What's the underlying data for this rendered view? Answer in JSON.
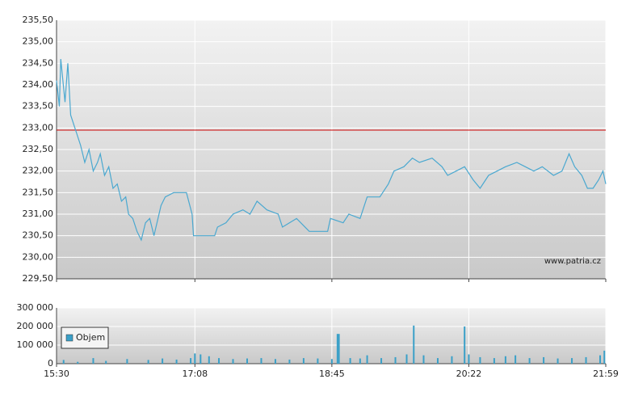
{
  "chart_data": [
    {
      "type": "line",
      "xlim": [
        "15:30",
        "21:59"
      ],
      "ylim": [
        229.5,
        235.5
      ],
      "yticks": [
        {
          "value": 229.5,
          "label": "229,50"
        },
        {
          "value": 230,
          "label": "230,00"
        },
        {
          "value": 230.5,
          "label": "230,50"
        },
        {
          "value": 231,
          "label": "231,00"
        },
        {
          "value": 231.5,
          "label": "231,50"
        },
        {
          "value": 232,
          "label": "232,00"
        },
        {
          "value": 232.5,
          "label": "232,50"
        },
        {
          "value": 233,
          "label": "233,00"
        },
        {
          "value": 233.5,
          "label": "233,50"
        },
        {
          "value": 234,
          "label": "234,00"
        },
        {
          "value": 234.5,
          "label": "234,50"
        },
        {
          "value": 235,
          "label": "235,00"
        },
        {
          "value": 235.5,
          "label": "235,50"
        }
      ],
      "grid": true,
      "reference_line": {
        "value": 232.95,
        "color": "#cc0000"
      },
      "annotation": "www.patria.cz",
      "x": [
        "15:30",
        "15:32",
        "15:33",
        "15:36",
        "15:38",
        "15:40",
        "15:43",
        "15:45",
        "15:47",
        "15:50",
        "15:53",
        "15:56",
        "15:59",
        "16:01",
        "16:04",
        "16:07",
        "16:10",
        "16:13",
        "16:16",
        "16:19",
        "16:21",
        "16:24",
        "16:27",
        "16:30",
        "16:33",
        "16:36",
        "16:39",
        "16:44",
        "16:47",
        "16:53",
        "17:02",
        "17:06",
        "17:07",
        "17:22",
        "17:24",
        "17:30",
        "17:35",
        "17:42",
        "17:47",
        "17:52",
        "17:59",
        "18:07",
        "18:10",
        "18:20",
        "18:29",
        "18:42",
        "18:44",
        "18:53",
        "18:57",
        "19:05",
        "19:10",
        "19:19",
        "19:25",
        "19:29",
        "19:36",
        "19:42",
        "19:47",
        "19:56",
        "20:03",
        "20:07",
        "20:13",
        "20:19",
        "20:25",
        "20:30",
        "20:36",
        "20:42",
        "20:48",
        "20:56",
        "21:02",
        "21:08",
        "21:14",
        "21:22",
        "21:28",
        "21:33",
        "21:37",
        "21:42",
        "21:46",
        "21:50",
        "21:54",
        "21:57",
        "21:59"
      ],
      "series": [
        {
          "color": "#4aa8d0",
          "values": [
            234.1,
            233.5,
            234.6,
            233.6,
            234.5,
            233.3,
            233.0,
            232.8,
            232.6,
            232.2,
            232.5,
            232.0,
            232.2,
            232.4,
            231.9,
            232.1,
            231.6,
            231.7,
            231.3,
            231.4,
            231.0,
            230.9,
            230.6,
            230.4,
            230.8,
            230.9,
            230.5,
            231.2,
            231.4,
            231.5,
            231.5,
            231.0,
            230.5,
            230.5,
            230.7,
            230.8,
            231.0,
            231.1,
            231.0,
            231.3,
            231.1,
            231.0,
            230.7,
            230.9,
            230.6,
            230.6,
            230.9,
            230.8,
            231.0,
            230.9,
            231.4,
            231.4,
            231.7,
            232.0,
            232.1,
            232.3,
            232.2,
            232.3,
            232.1,
            231.9,
            232.0,
            232.1,
            231.8,
            231.6,
            231.9,
            232.0,
            232.1,
            232.2,
            232.1,
            232.0,
            232.1,
            231.9,
            232.0,
            232.4,
            232.1,
            231.9,
            231.6,
            231.6,
            231.8,
            232.0,
            231.7
          ]
        }
      ]
    },
    {
      "type": "bar",
      "xlim": [
        "15:30",
        "21:59"
      ],
      "xticks": [
        "15:30",
        "17:08",
        "18:45",
        "20:22",
        "21:59"
      ],
      "ylim": [
        0,
        300000
      ],
      "yticks": [
        0,
        {
          "value": 100000,
          "label": "100 000"
        },
        {
          "value": 200000,
          "label": "200 000"
        },
        {
          "value": 300000,
          "label": "300 000"
        }
      ],
      "grid": true,
      "series": [
        {
          "name": "Objem",
          "color": "#3aa0c8",
          "x": [
            "15:35",
            "15:45",
            "15:56",
            "16:05",
            "16:20",
            "16:35",
            "16:45",
            "16:55",
            "17:05",
            "17:08",
            "17:12",
            "17:18",
            "17:25",
            "17:35",
            "17:45",
            "17:55",
            "18:05",
            "18:15",
            "18:25",
            "18:35",
            "18:45",
            "18:49",
            "18:50",
            "18:58",
            "19:05",
            "19:10",
            "19:20",
            "19:30",
            "19:38",
            "19:43",
            "19:50",
            "20:00",
            "20:10",
            "20:19",
            "20:22",
            "20:30",
            "20:40",
            "20:48",
            "20:55",
            "21:05",
            "21:15",
            "21:25",
            "21:35",
            "21:45",
            "21:55",
            "21:58"
          ],
          "values": [
            20000,
            10000,
            30000,
            15000,
            25000,
            20000,
            28000,
            22000,
            30000,
            55000,
            50000,
            40000,
            30000,
            25000,
            28000,
            30000,
            25000,
            22000,
            30000,
            28000,
            25000,
            160000,
            160000,
            30000,
            28000,
            45000,
            30000,
            35000,
            50000,
            205000,
            45000,
            30000,
            40000,
            200000,
            50000,
            35000,
            30000,
            40000,
            45000,
            30000,
            35000,
            28000,
            30000,
            35000,
            45000,
            70000
          ]
        }
      ]
    }
  ]
}
